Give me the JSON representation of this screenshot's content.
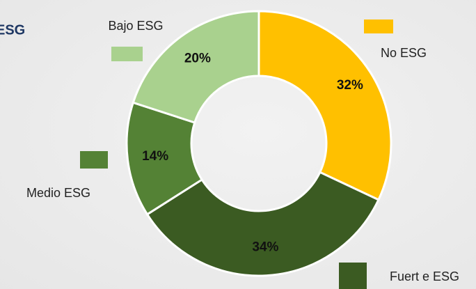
{
  "chart_data": {
    "type": "donut",
    "title": "ESG",
    "categories": [
      "No ESG",
      "Fuert e ESG",
      "Medio ESG",
      "Bajo ESG"
    ],
    "values": [
      32,
      34,
      14,
      20
    ],
    "value_labels": [
      "32%",
      "34%",
      "14%",
      "20%"
    ],
    "colors": [
      "#ffc000",
      "#3b5b22",
      "#548235",
      "#a9d18e"
    ]
  }
}
